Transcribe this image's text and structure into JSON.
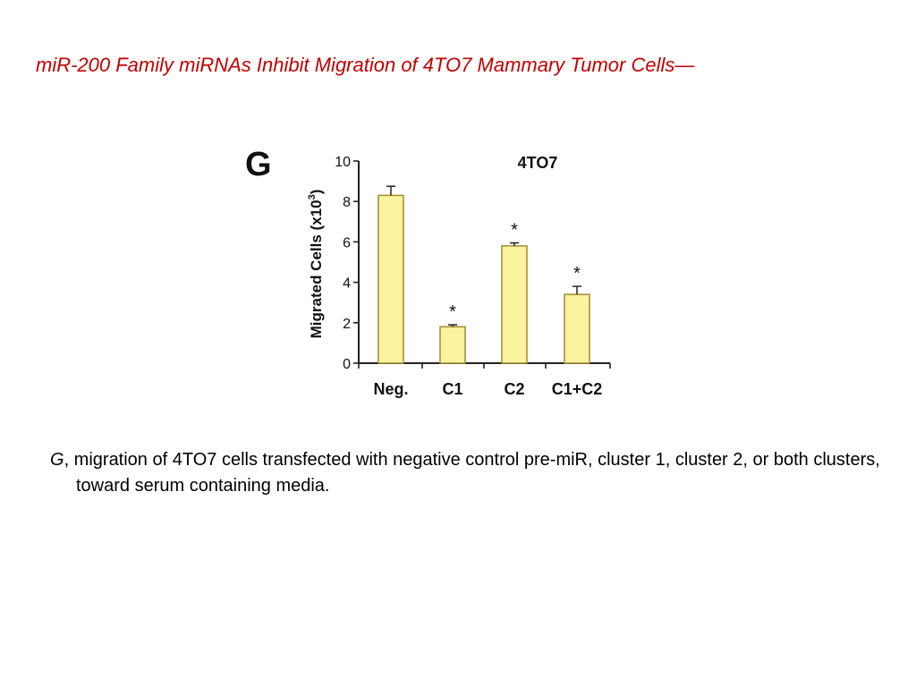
{
  "slide": {
    "title": "miR-200 Family miRNAs Inhibit Migration of 4TO7 Mammary Tumor Cells—"
  },
  "caption": {
    "panel": "G",
    "text": ", migration of 4TO7 cells transfected with negative control pre-miR, cluster 1, cluster 2, or both clusters, toward serum containing media."
  },
  "chart_data": {
    "type": "bar",
    "panel_label": "G",
    "title": "4TO7",
    "ylabel": "Migrated Cells (x10",
    "ylabel_sup": "3",
    "ylabel_end": ")",
    "xlabel": "",
    "categories": [
      "Neg.",
      "C1",
      "C2",
      "C1+C2"
    ],
    "values": [
      8.3,
      1.8,
      5.8,
      3.4
    ],
    "errors": [
      0.45,
      0.1,
      0.15,
      0.4
    ],
    "significance": [
      "",
      "*",
      "*",
      "*"
    ],
    "ylim": [
      0,
      10
    ],
    "yticks": [
      "0",
      "2",
      "4",
      "6",
      "8",
      "10"
    ],
    "grid": false,
    "colors": {
      "bar_fill": "#fbf3a0",
      "bar_stroke": "#a08c30",
      "axis": "#222222"
    }
  }
}
